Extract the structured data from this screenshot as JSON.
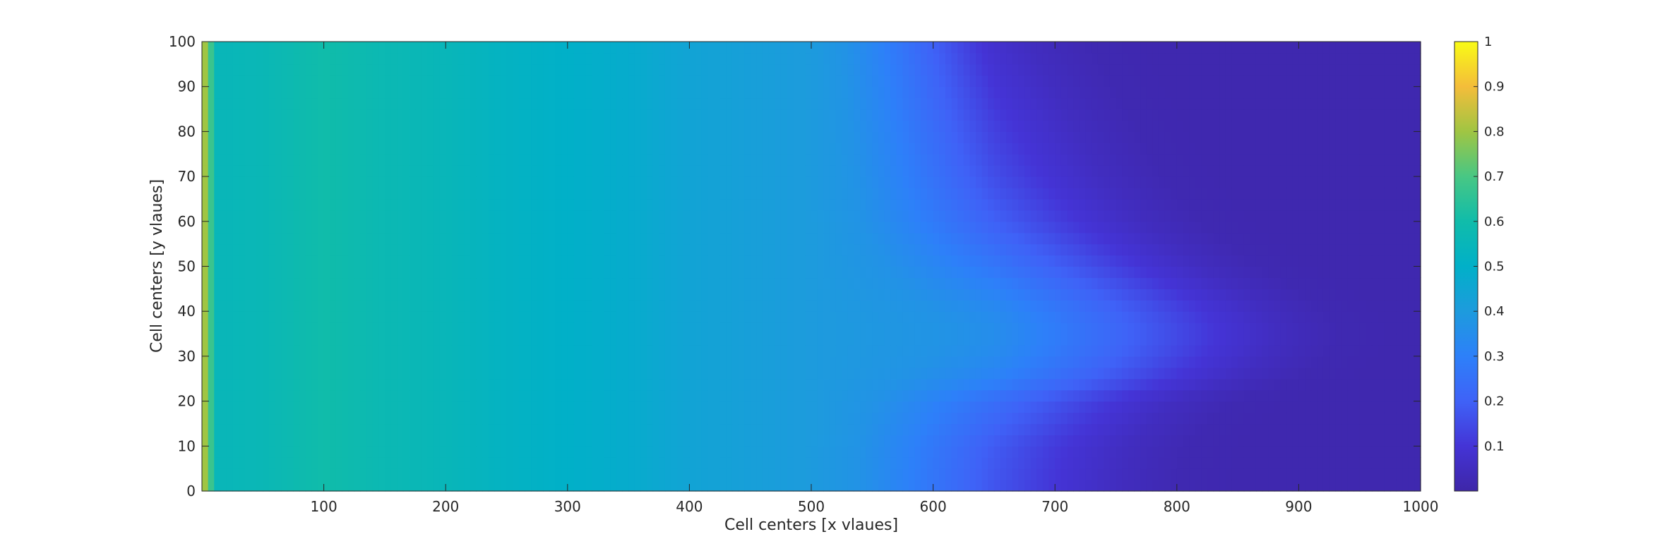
{
  "chart_data": {
    "type": "heatmap",
    "title": "",
    "xlabel": "Cell centers [x vlaues]",
    "ylabel": "Cell centers [y vlaues]",
    "xlim": [
      0,
      1000
    ],
    "ylim": [
      0,
      100
    ],
    "xticks": [
      100,
      200,
      300,
      400,
      500,
      600,
      700,
      800,
      900,
      1000
    ],
    "yticks": [
      0,
      10,
      20,
      30,
      40,
      50,
      60,
      70,
      80,
      90,
      100
    ],
    "colorbar": {
      "limits": [
        0,
        1
      ],
      "ticks": [
        0.1,
        0.2,
        0.3,
        0.4,
        0.5,
        0.6,
        0.7,
        0.8,
        0.9,
        1
      ],
      "colormap": "parula",
      "location": "right"
    },
    "profile_x": [
      0,
      5,
      10,
      50,
      100,
      150,
      200,
      250,
      300,
      350,
      400,
      450,
      500,
      550,
      600,
      650,
      700,
      750,
      800,
      850,
      900,
      1000
    ],
    "profile_values": [
      0.8,
      0.8,
      0.55,
      0.56,
      0.6,
      0.57,
      0.55,
      0.52,
      0.5,
      0.48,
      0.44,
      0.42,
      0.4,
      0.37,
      0.31,
      0.24,
      0.17,
      0.1,
      0.05,
      0.02,
      0.015,
      0.015
    ],
    "front_y": [
      0,
      10,
      20,
      25,
      30,
      35,
      40,
      45,
      50,
      60,
      70,
      80,
      90,
      100
    ],
    "front_x": [
      690,
      700,
      740,
      790,
      815,
      825,
      815,
      790,
      760,
      710,
      680,
      660,
      640,
      620
    ]
  },
  "colors": {
    "parula": [
      "#3e26a8",
      "#4434d6",
      "#3f62f7",
      "#2d80f9",
      "#1d9bdd",
      "#01b0c8",
      "#10bcaa",
      "#48c784",
      "#a0c543",
      "#f4bd3a",
      "#f9fb15"
    ]
  }
}
